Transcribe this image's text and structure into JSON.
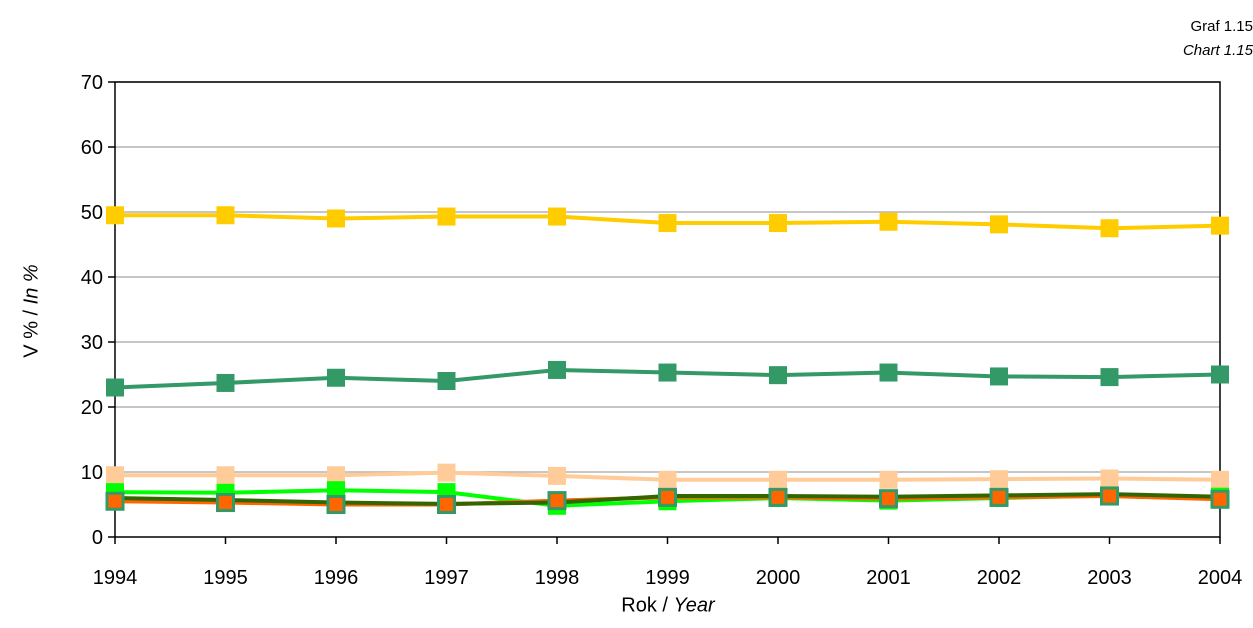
{
  "caption": {
    "code_cz": "Graf 1.15",
    "code_en": "Chart 1.15"
  },
  "axis_titles": {
    "y_main": "V % / ",
    "y_italic": "In %",
    "x_main": "Rok / ",
    "x_italic": "Year"
  },
  "chart_data": {
    "type": "line",
    "title": "",
    "xlabel": "Rok / Year",
    "ylabel": "V % / In %",
    "ylim": [
      0,
      70
    ],
    "yticks": [
      0,
      10,
      20,
      30,
      40,
      50,
      60,
      70
    ],
    "grid": "horizontal",
    "legend": "none",
    "x": [
      1994,
      1995,
      1996,
      1997,
      1998,
      1999,
      2000,
      2001,
      2002,
      2003,
      2004
    ],
    "series": [
      {
        "color": "#FFCC00",
        "marker": "square",
        "values": [
          49.5,
          49.5,
          49.0,
          49.3,
          49.3,
          48.3,
          48.3,
          48.5,
          48.1,
          47.5,
          47.9
        ]
      },
      {
        "color": "#339966",
        "marker": "square",
        "values": [
          23.0,
          23.7,
          24.5,
          24.0,
          25.7,
          25.3,
          24.9,
          25.3,
          24.7,
          24.6,
          25.0
        ]
      },
      {
        "color": "#FFCC99",
        "marker": "square",
        "values": [
          9.5,
          9.5,
          9.5,
          9.9,
          9.4,
          8.8,
          8.8,
          8.8,
          8.9,
          9.0,
          8.8
        ]
      },
      {
        "color": "#00FF00",
        "marker": "square",
        "values": [
          6.9,
          6.8,
          7.2,
          6.9,
          4.8,
          5.5,
          6.0,
          5.6,
          6.0,
          6.4,
          6.2
        ]
      },
      {
        "color": "#FF6600",
        "marker": "square-bordered",
        "border": "#339966",
        "values": [
          5.5,
          5.3,
          5.0,
          5.0,
          5.6,
          6.1,
          6.1,
          5.9,
          6.1,
          6.3,
          5.8
        ]
      },
      {
        "color": "#336600",
        "marker": "none",
        "values": [
          6.0,
          5.7,
          5.3,
          5.1,
          5.3,
          6.3,
          6.3,
          6.2,
          6.4,
          6.6,
          6.2
        ]
      }
    ]
  }
}
